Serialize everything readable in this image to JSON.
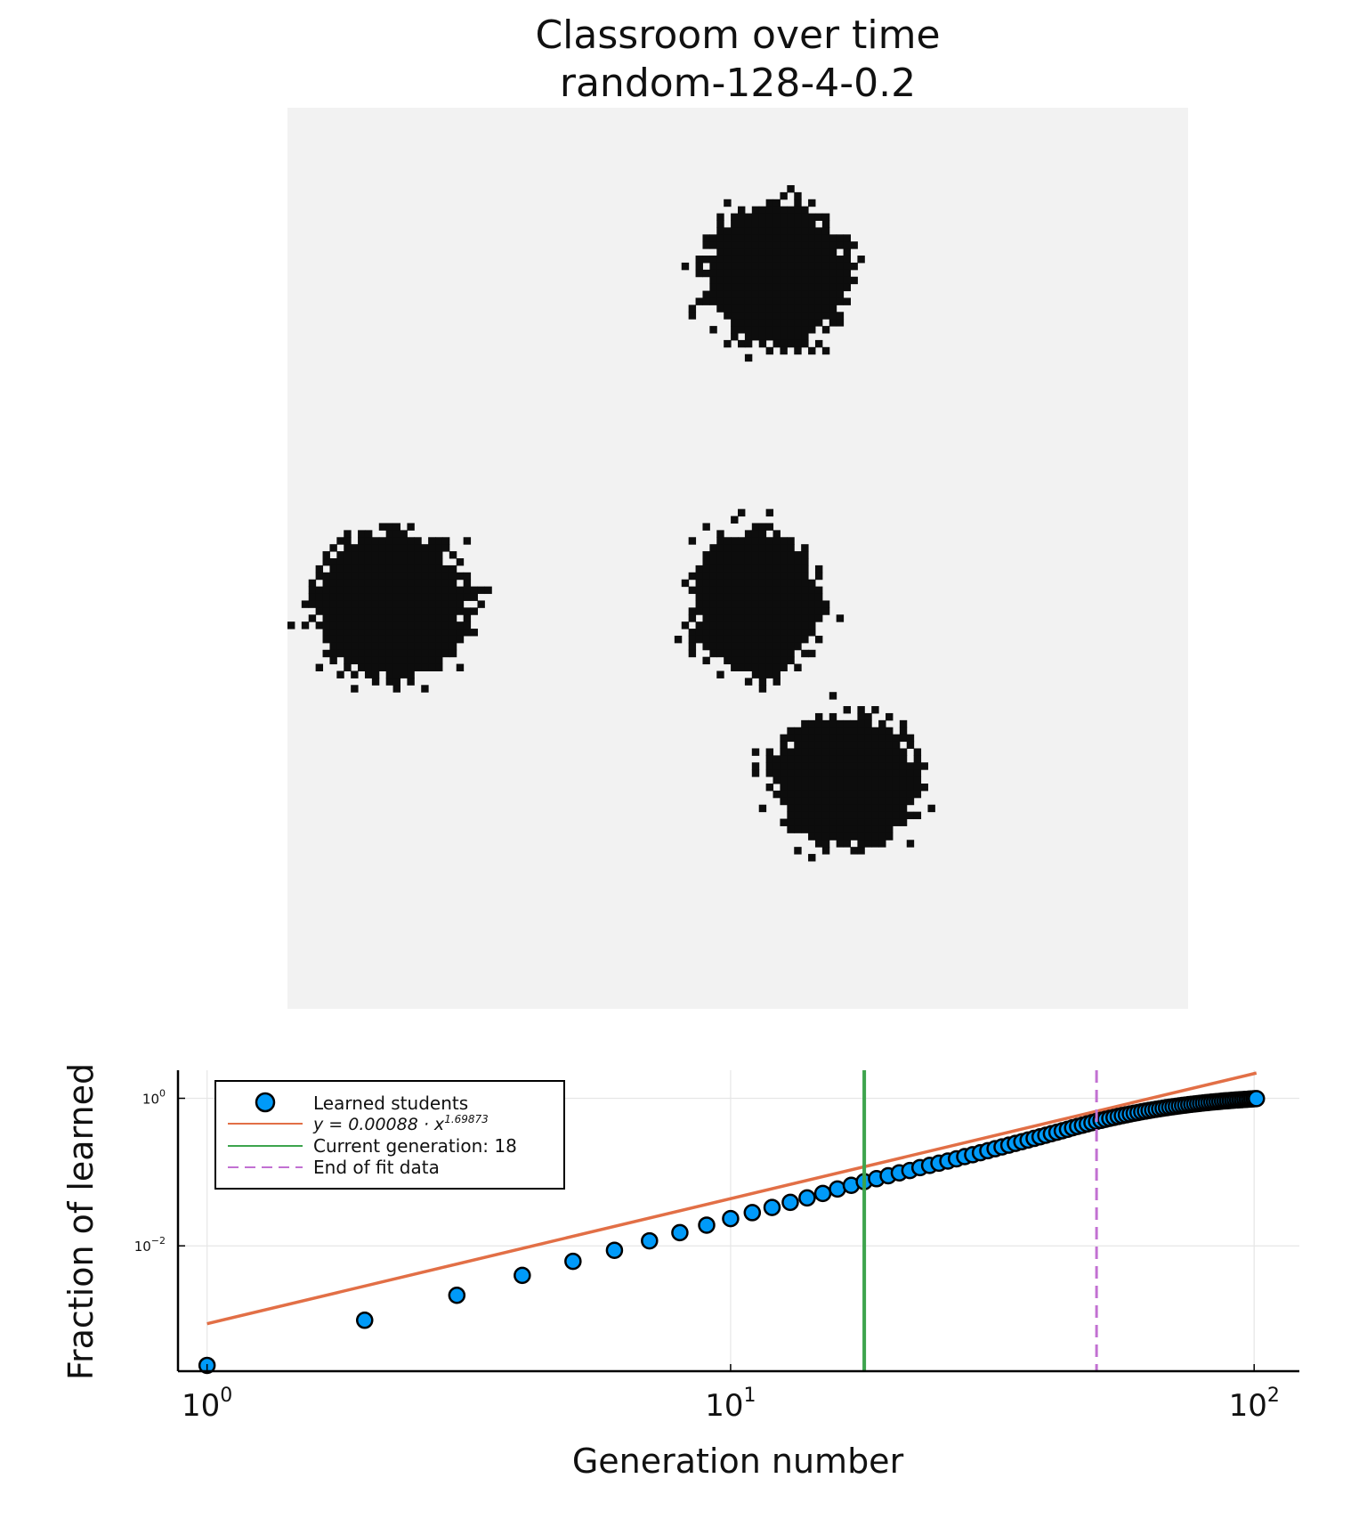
{
  "chart_data": [
    {
      "type": "heatmap",
      "title": "Classroom over time",
      "subtitle": "random-128-4-0.2",
      "grid_size": [
        128,
        128
      ],
      "colors": {
        "background": "#f2f2f2",
        "learned": "#0d0d0d"
      },
      "clusters_grid_cells": [
        {
          "cx": 69,
          "cy": 23,
          "rx": 11,
          "ry": 11
        },
        {
          "cx": 14,
          "cy": 70,
          "rx": 12,
          "ry": 11
        },
        {
          "cx": 66,
          "cy": 70,
          "rx": 10,
          "ry": 11
        },
        {
          "cx": 79,
          "cy": 95,
          "rx": 11,
          "ry": 10
        }
      ]
    },
    {
      "type": "scatter",
      "xlabel": "Generation number",
      "ylabel": "Fraction of learned",
      "xscale": "log",
      "yscale": "log",
      "xlim": [
        0.88,
        122
      ],
      "ylim": [
        0.0002,
        2.4
      ],
      "xticks": [
        {
          "value": 1,
          "base": "10",
          "exp": "0"
        },
        {
          "value": 10,
          "base": "10",
          "exp": "1"
        },
        {
          "value": 100,
          "base": "10",
          "exp": "2"
        }
      ],
      "yticks": [
        {
          "value": 1,
          "base": "10",
          "exp": "0"
        },
        {
          "value": 0.01,
          "base": "10",
          "exp": "−2"
        }
      ],
      "grid": true,
      "legend_position": "top-left",
      "series": [
        {
          "name": "Learned students",
          "kind": "markers",
          "color": "#009af9",
          "x": [
            1,
            2,
            3,
            4,
            5,
            6,
            7,
            8,
            9,
            10,
            11,
            12,
            13,
            14,
            15,
            16,
            17,
            18,
            19,
            20,
            21,
            22,
            23,
            24,
            25,
            26,
            27,
            28,
            29,
            30,
            31,
            32,
            33,
            34,
            35,
            36,
            37,
            38,
            39,
            40,
            41,
            42,
            43,
            44,
            45,
            46,
            47,
            48,
            49,
            50,
            51,
            52,
            53,
            54,
            55,
            56,
            57,
            58,
            59,
            60,
            61,
            62,
            63,
            64,
            65,
            66,
            67,
            68,
            69,
            70,
            71,
            72,
            73,
            74,
            75,
            76,
            77,
            78,
            79,
            80,
            81,
            82,
            83,
            84,
            85,
            86,
            87,
            88,
            89,
            90,
            91,
            92,
            93,
            94,
            95,
            96,
            97,
            98,
            99,
            100,
            101
          ],
          "y": [
            0.00024,
            0.00098,
            0.00214,
            0.00398,
            0.00617,
            0.00871,
            0.0117,
            0.0151,
            0.0191,
            0.0234,
            0.0282,
            0.0331,
            0.0389,
            0.0447,
            0.0513,
            0.0589,
            0.0661,
            0.0741,
            0.0813,
            0.0891,
            0.0977,
            0.105,
            0.115,
            0.123,
            0.132,
            0.141,
            0.151,
            0.162,
            0.172,
            0.183,
            0.195,
            0.207,
            0.219,
            0.232,
            0.245,
            0.258,
            0.272,
            0.286,
            0.301,
            0.316,
            0.331,
            0.347,
            0.363,
            0.38,
            0.398,
            0.415,
            0.432,
            0.45,
            0.467,
            0.485,
            0.502,
            0.519,
            0.535,
            0.551,
            0.567,
            0.583,
            0.598,
            0.613,
            0.628,
            0.642,
            0.657,
            0.67,
            0.684,
            0.697,
            0.71,
            0.722,
            0.734,
            0.746,
            0.757,
            0.768,
            0.779,
            0.79,
            0.8,
            0.81,
            0.82,
            0.829,
            0.838,
            0.847,
            0.856,
            0.864,
            0.872,
            0.88,
            0.888,
            0.895,
            0.902,
            0.909,
            0.916,
            0.922,
            0.928,
            0.934,
            0.94,
            0.945,
            0.95,
            0.955,
            0.96,
            0.965,
            0.97,
            0.975,
            0.98,
            0.985,
            0.99
          ]
        },
        {
          "name": "y = 0.00088 · x^1.69873",
          "kind": "line",
          "color": "#e26f46",
          "coefficient": 0.00088,
          "exponent": 1.69873,
          "x": [
            1,
            101
          ],
          "y": [
            0.00088,
            2.2
          ]
        },
        {
          "name": "Current generation: 18",
          "kind": "vline",
          "color": "#3da44d",
          "x": 18
        },
        {
          "name": "End of fit data",
          "kind": "vline-dashed",
          "color": "#c271d2",
          "x": 50
        }
      ],
      "legend_items": [
        {
          "label": "Learned students",
          "y_label": "",
          "exp_label": ""
        },
        {
          "label": "",
          "y_label": "y = 0.00088 · x",
          "exp_label": "1.69873"
        },
        {
          "label": "Current generation: 18",
          "y_label": "",
          "exp_label": ""
        },
        {
          "label": "End of fit data",
          "y_label": "",
          "exp_label": ""
        }
      ]
    }
  ]
}
